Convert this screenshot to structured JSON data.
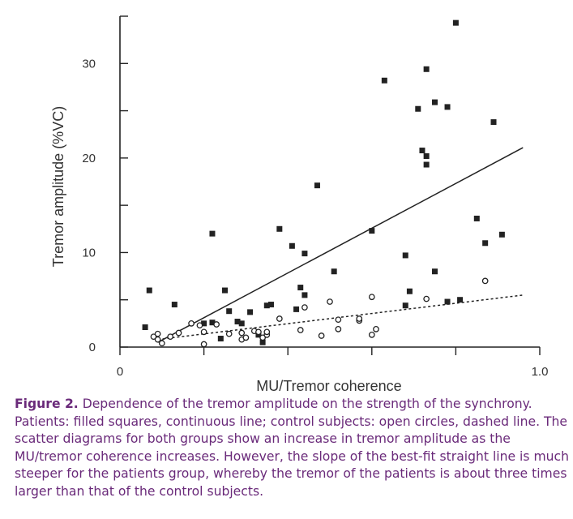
{
  "chart_data": {
    "type": "scatter",
    "title": "",
    "xlabel": "MU/Tremor coherence",
    "ylabel": "Tremor amplitude (%VC)",
    "xlim": [
      0,
      1.0
    ],
    "ylim": [
      0,
      35
    ],
    "x_tick_labels": [
      "0",
      "1.0"
    ],
    "x_ticks": [
      0,
      0.2,
      0.4,
      0.6,
      0.8,
      1.0
    ],
    "y_tick_labels": [
      "0",
      "10",
      "20",
      "30"
    ],
    "y_ticks": [
      0,
      5,
      10,
      15,
      20,
      25,
      30,
      35
    ],
    "grid": false,
    "series": [
      {
        "marker": "filled-square",
        "color": "#222222",
        "points": [
          [
            0.06,
            2.1
          ],
          [
            0.07,
            6.0
          ],
          [
            0.13,
            4.5
          ],
          [
            0.2,
            2.5
          ],
          [
            0.22,
            2.6
          ],
          [
            0.22,
            12.0
          ],
          [
            0.24,
            0.9
          ],
          [
            0.25,
            6.0
          ],
          [
            0.26,
            3.8
          ],
          [
            0.28,
            2.7
          ],
          [
            0.29,
            2.5
          ],
          [
            0.31,
            3.7
          ],
          [
            0.33,
            1.3
          ],
          [
            0.34,
            0.5
          ],
          [
            0.35,
            4.4
          ],
          [
            0.36,
            4.5
          ],
          [
            0.38,
            12.5
          ],
          [
            0.41,
            10.7
          ],
          [
            0.42,
            4.0
          ],
          [
            0.43,
            6.3
          ],
          [
            0.44,
            5.5
          ],
          [
            0.44,
            9.9
          ],
          [
            0.47,
            17.1
          ],
          [
            0.51,
            8.0
          ],
          [
            0.6,
            12.3
          ],
          [
            0.63,
            28.2
          ],
          [
            0.68,
            4.4
          ],
          [
            0.68,
            9.7
          ],
          [
            0.69,
            5.9
          ],
          [
            0.71,
            25.2
          ],
          [
            0.72,
            20.8
          ],
          [
            0.73,
            29.4
          ],
          [
            0.73,
            20.2
          ],
          [
            0.73,
            19.3
          ],
          [
            0.75,
            25.9
          ],
          [
            0.75,
            8.0
          ],
          [
            0.78,
            25.4
          ],
          [
            0.78,
            4.8
          ],
          [
            0.8,
            34.3
          ],
          [
            0.81,
            5.0
          ],
          [
            0.85,
            13.6
          ],
          [
            0.87,
            11.0
          ],
          [
            0.89,
            23.8
          ],
          [
            0.91,
            11.9
          ]
        ],
        "fit": {
          "style": "solid",
          "from": [
            0.09,
            0.5
          ],
          "to": [
            0.96,
            21.1
          ]
        }
      },
      {
        "marker": "open-circle",
        "color": "#222222",
        "points": [
          [
            0.08,
            1.1
          ],
          [
            0.09,
            1.4
          ],
          [
            0.09,
            0.8
          ],
          [
            0.1,
            0.4
          ],
          [
            0.12,
            1.1
          ],
          [
            0.14,
            1.5
          ],
          [
            0.17,
            2.5
          ],
          [
            0.19,
            2.3
          ],
          [
            0.2,
            1.6
          ],
          [
            0.2,
            0.3
          ],
          [
            0.23,
            2.4
          ],
          [
            0.26,
            1.4
          ],
          [
            0.29,
            1.5
          ],
          [
            0.29,
            0.8
          ],
          [
            0.3,
            1.0
          ],
          [
            0.32,
            1.7
          ],
          [
            0.33,
            1.6
          ],
          [
            0.34,
            1.0
          ],
          [
            0.35,
            1.3
          ],
          [
            0.35,
            1.6
          ],
          [
            0.38,
            3.0
          ],
          [
            0.43,
            1.8
          ],
          [
            0.44,
            4.2
          ],
          [
            0.48,
            1.2
          ],
          [
            0.5,
            4.8
          ],
          [
            0.52,
            1.9
          ],
          [
            0.52,
            2.9
          ],
          [
            0.57,
            2.8
          ],
          [
            0.57,
            3.0
          ],
          [
            0.6,
            1.3
          ],
          [
            0.6,
            5.3
          ],
          [
            0.61,
            1.9
          ],
          [
            0.73,
            5.1
          ],
          [
            0.87,
            7.0
          ]
        ],
        "fit": {
          "style": "dashed",
          "from": [
            0.09,
            0.8
          ],
          "to": [
            0.96,
            5.5
          ]
        }
      }
    ]
  },
  "caption": {
    "label": "Figure 2.",
    "text": " Dependence of the tremor amplitude on the strength of the synchrony. Patients: filled squares, continuous line; control subjects: open circles, dashed line. The scatter diagrams for both groups show an increase in tremor amplitude as the MU/tremor coherence increases. However, the slope of the best-fit straight line is much steeper for the patients group, whereby the tremor of the patients is about three times larger than that of the control subjects."
  }
}
